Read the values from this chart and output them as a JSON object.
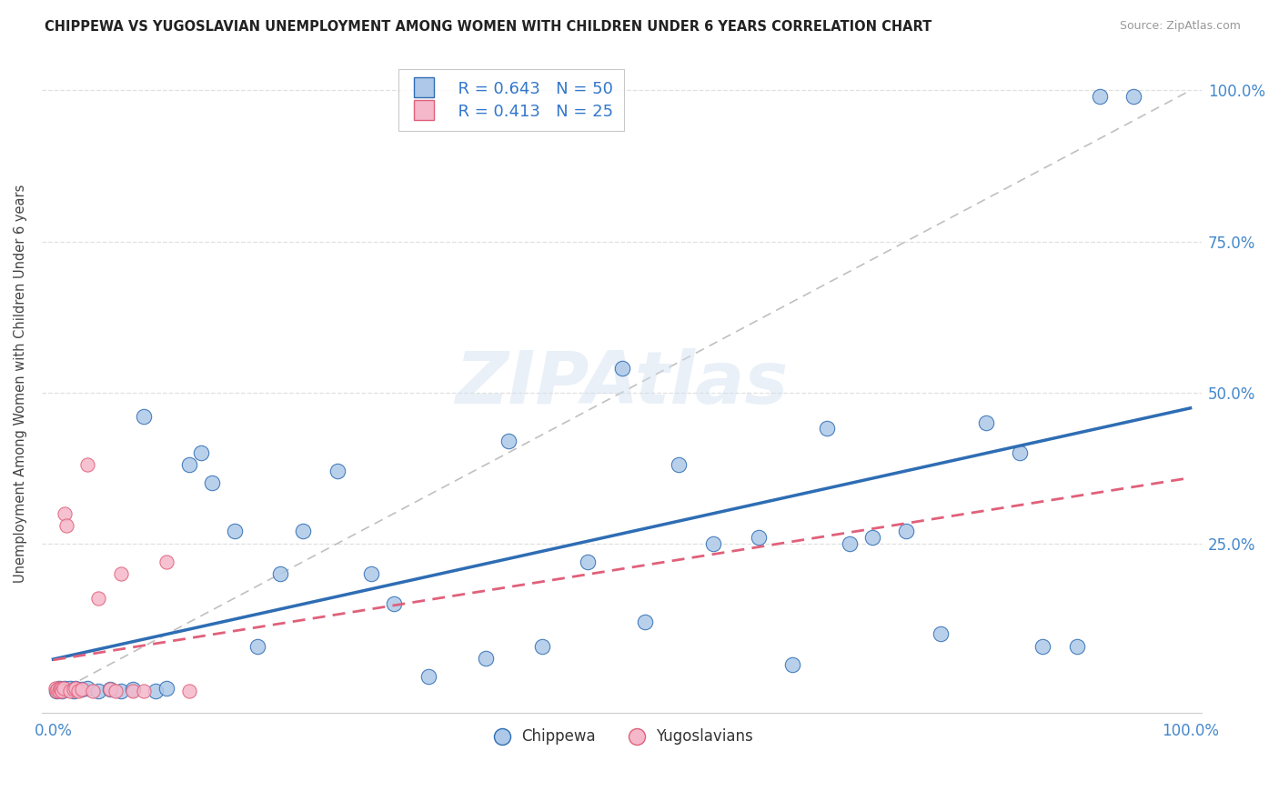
{
  "title": "CHIPPEWA VS YUGOSLAVIAN UNEMPLOYMENT AMONG WOMEN WITH CHILDREN UNDER 6 YEARS CORRELATION CHART",
  "source": "Source: ZipAtlas.com",
  "ylabel": "Unemployment Among Women with Children Under 6 years",
  "chippewa_R": 0.643,
  "chippewa_N": 50,
  "yugoslavian_R": 0.413,
  "yugoslavian_N": 25,
  "chippewa_color": "#adc8e8",
  "yugoslavian_color": "#f5b8cb",
  "chippewa_line_color": "#2e6db4",
  "yugoslavian_line_color": "#e0607a",
  "chippewa_x": [
    0.003,
    0.005,
    0.007,
    0.008,
    0.01,
    0.012,
    0.015,
    0.018,
    0.02,
    0.025,
    0.03,
    0.04,
    0.05,
    0.06,
    0.07,
    0.08,
    0.09,
    0.1,
    0.12,
    0.13,
    0.14,
    0.16,
    0.18,
    0.2,
    0.22,
    0.25,
    0.28,
    0.3,
    0.33,
    0.38,
    0.4,
    0.43,
    0.47,
    0.5,
    0.52,
    0.55,
    0.58,
    0.62,
    0.65,
    0.68,
    0.7,
    0.72,
    0.75,
    0.78,
    0.82,
    0.85,
    0.87,
    0.9,
    0.92,
    0.95
  ],
  "chippewa_y": [
    0.005,
    0.01,
    0.008,
    0.005,
    0.01,
    0.008,
    0.01,
    0.005,
    0.01,
    0.008,
    0.01,
    0.005,
    0.008,
    0.005,
    0.008,
    0.46,
    0.005,
    0.01,
    0.38,
    0.4,
    0.35,
    0.27,
    0.08,
    0.2,
    0.27,
    0.37,
    0.2,
    0.15,
    0.03,
    0.06,
    0.42,
    0.08,
    0.22,
    0.54,
    0.12,
    0.38,
    0.25,
    0.26,
    0.05,
    0.44,
    0.25,
    0.26,
    0.27,
    0.1,
    0.45,
    0.4,
    0.08,
    0.08,
    0.99,
    0.99
  ],
  "yugoslavian_x": [
    0.002,
    0.003,
    0.004,
    0.005,
    0.006,
    0.007,
    0.008,
    0.009,
    0.01,
    0.012,
    0.015,
    0.018,
    0.02,
    0.022,
    0.025,
    0.03,
    0.035,
    0.04,
    0.05,
    0.055,
    0.06,
    0.07,
    0.08,
    0.1,
    0.12
  ],
  "yugoslavian_y": [
    0.01,
    0.005,
    0.008,
    0.005,
    0.01,
    0.008,
    0.005,
    0.01,
    0.3,
    0.28,
    0.005,
    0.008,
    0.01,
    0.005,
    0.008,
    0.38,
    0.005,
    0.16,
    0.008,
    0.005,
    0.2,
    0.005,
    0.005,
    0.22,
    0.005
  ],
  "x_tick_positions": [
    0.0,
    1.0
  ],
  "x_tick_labels": [
    "0.0%",
    "100.0%"
  ],
  "y_tick_positions": [
    0.0,
    0.25,
    0.5,
    0.75,
    1.0
  ],
  "y_tick_labels": [
    "",
    "25.0%",
    "50.0%",
    "75.0%",
    "100.0%"
  ],
  "grid_color": "#e0e0e0",
  "watermark_text": "ZIPAtlas",
  "background_color": "#ffffff"
}
